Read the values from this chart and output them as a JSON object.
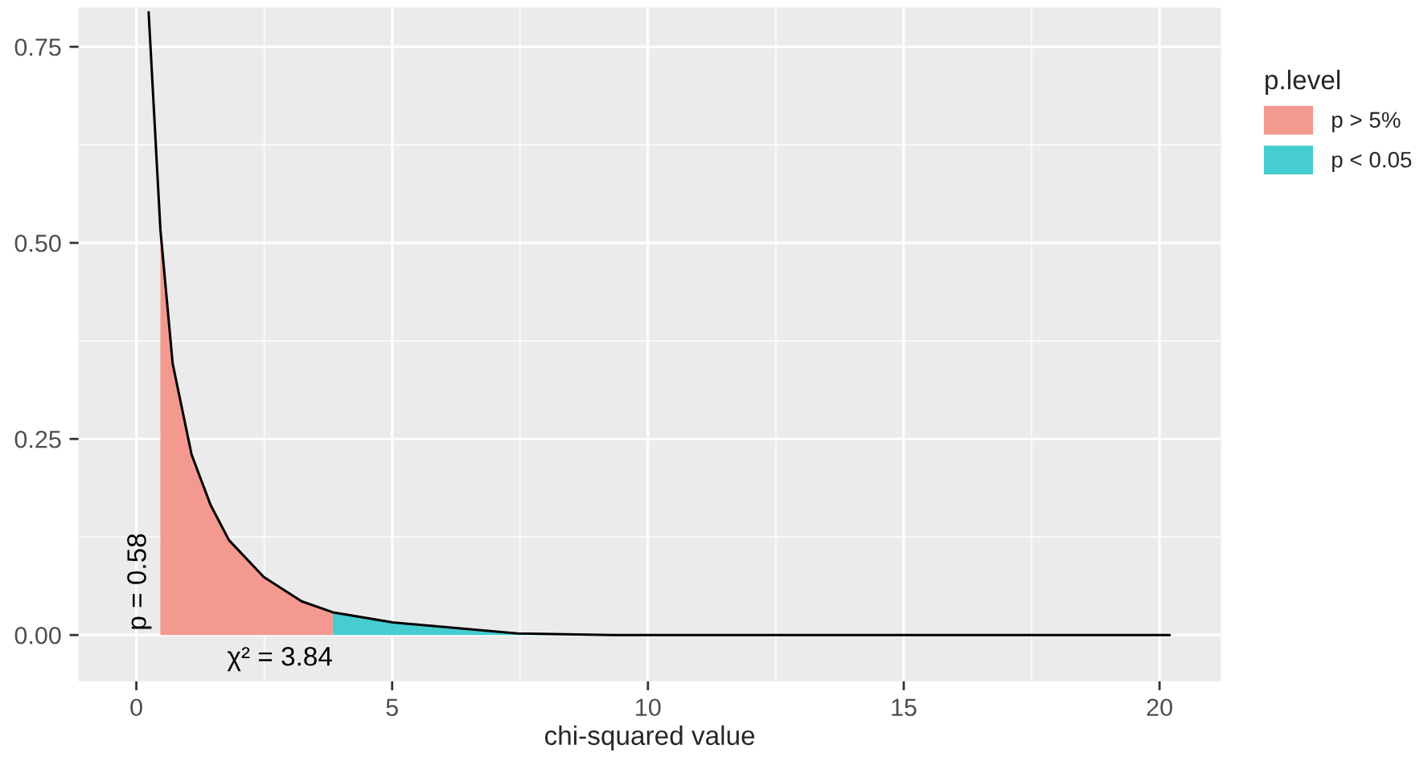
{
  "chart_data": {
    "type": "area",
    "xlabel": "chi-squared value",
    "legend_title": "p.level",
    "series": [
      {
        "name": "p > 5%",
        "color": "#f4998f",
        "x": [
          0.47,
          0.71,
          1.08,
          1.45,
          1.81,
          2.49,
          3.23,
          3.84
        ],
        "values": [
          0.517,
          0.346,
          0.23,
          0.166,
          0.121,
          0.074,
          0.043,
          0.029
        ]
      },
      {
        "name": "p < 0.05",
        "color": "#45cdd1",
        "x": [
          3.84,
          5.01,
          7.45,
          9.3
        ],
        "values": [
          0.029,
          0.016,
          0.002,
          0.0
        ]
      },
      {
        "type": "line",
        "color": "#000000",
        "x": [
          0.24,
          0.47,
          0.71,
          1.08,
          1.45,
          1.81,
          2.49,
          3.23,
          3.84,
          5.01,
          7.45,
          9.3,
          20.2
        ],
        "values": [
          0.794,
          0.517,
          0.346,
          0.23,
          0.166,
          0.121,
          0.074,
          0.043,
          0.029,
          0.016,
          0.002,
          0.0,
          0.0
        ]
      }
    ],
    "annotations": [
      {
        "text": "p = 0.58",
        "x": 0.47,
        "y": 0.0
      },
      {
        "text": "χ² = 3.84",
        "x": 3.84,
        "y": 0.0
      }
    ],
    "xlim": [
      -1.13,
      21.2
    ],
    "ylim": [
      -0.059,
      0.8
    ],
    "xticks": [
      0,
      5,
      10,
      15,
      20
    ],
    "yticks": [
      {
        "value": 0,
        "label": "0.00"
      },
      {
        "value": 0.25,
        "label": "0.25"
      },
      {
        "value": 0.5,
        "label": "0.50"
      },
      {
        "value": 0.75,
        "label": "0.75"
      }
    ],
    "grid": true,
    "legend": "right"
  }
}
